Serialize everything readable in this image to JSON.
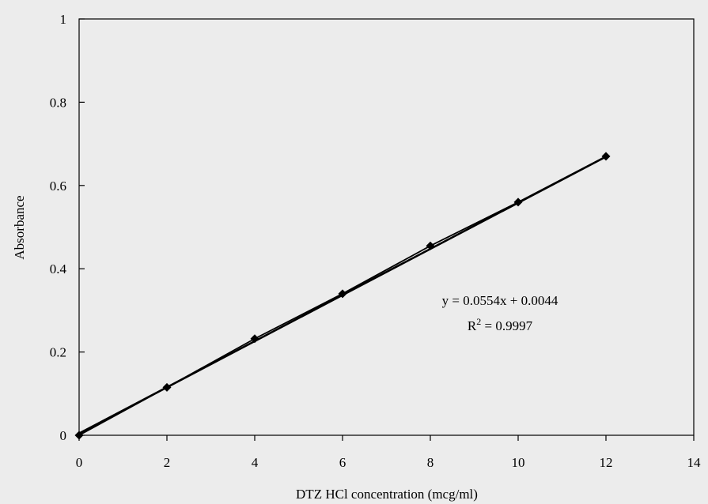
{
  "chart_data": {
    "type": "scatter",
    "title": "",
    "xlabel": "DTZ HCl concentration (mcg/ml)",
    "ylabel": "Absorbance",
    "xlim": [
      0,
      14
    ],
    "ylim": [
      0,
      1
    ],
    "x_ticks": [
      0,
      2,
      4,
      6,
      8,
      10,
      12,
      14
    ],
    "y_ticks": [
      0,
      0.2,
      0.4,
      0.6,
      0.8,
      1
    ],
    "x_tick_labels": [
      "0",
      "2",
      "4",
      "6",
      "8",
      "10",
      "12",
      "14"
    ],
    "y_tick_labels": [
      "0",
      "0.2",
      "0.4",
      "0.6",
      "0.8",
      "1"
    ],
    "grid": false,
    "legend": "none",
    "series": [
      {
        "x": [
          0,
          2,
          4,
          6,
          8,
          10,
          12
        ],
        "y": [
          0,
          0.115,
          0.232,
          0.34,
          0.455,
          0.56,
          0.67
        ],
        "marker": "diamond",
        "color": "#000000",
        "line": "connected"
      }
    ],
    "trendline": {
      "slope": 0.0554,
      "intercept": 0.0044
    },
    "annotations": {
      "equation": "y = 0.0554x + 0.0044",
      "r2_prefix": "R",
      "r2_exponent": "2",
      "r2_suffix": " = 0.9997"
    }
  }
}
